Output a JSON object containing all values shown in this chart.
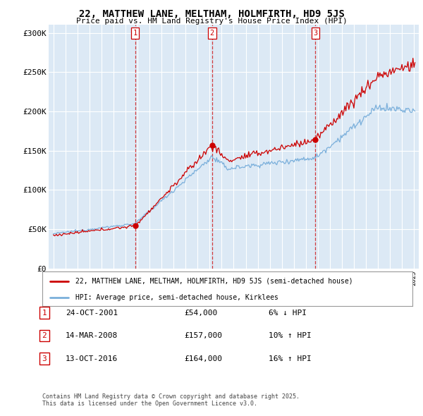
{
  "title": "22, MATTHEW LANE, MELTHAM, HOLMFIRTH, HD9 5JS",
  "subtitle": "Price paid vs. HM Land Registry's House Price Index (HPI)",
  "legend_line1": "22, MATTHEW LANE, MELTHAM, HOLMFIRTH, HD9 5JS (semi-detached house)",
  "legend_line2": "HPI: Average price, semi-detached house, Kirklees",
  "footer": "Contains HM Land Registry data © Crown copyright and database right 2025.\nThis data is licensed under the Open Government Licence v3.0.",
  "transactions": [
    {
      "num": "1",
      "date": "24-OCT-2001",
      "price": "£54,000",
      "change": "6% ↓ HPI",
      "year": 2001.8,
      "price_k": 54
    },
    {
      "num": "2",
      "date": "14-MAR-2008",
      "price": "£157,000",
      "change": "10% ↑ HPI",
      "year": 2008.2,
      "price_k": 157
    },
    {
      "num": "3",
      "date": "13-OCT-2016",
      "price": "£164,000",
      "change": "16% ↑ HPI",
      "year": 2016.8,
      "price_k": 164
    }
  ],
  "red_color": "#cc0000",
  "blue_color": "#7aafdb",
  "background_chart": "#dce9f5",
  "grid_color": "#ffffff",
  "border_color": "#aaaaaa",
  "yticks": [
    0,
    50,
    100,
    150,
    200,
    250,
    300
  ],
  "ylim": [
    0,
    310
  ],
  "xlim_start": 1994.6,
  "xlim_end": 2025.4
}
